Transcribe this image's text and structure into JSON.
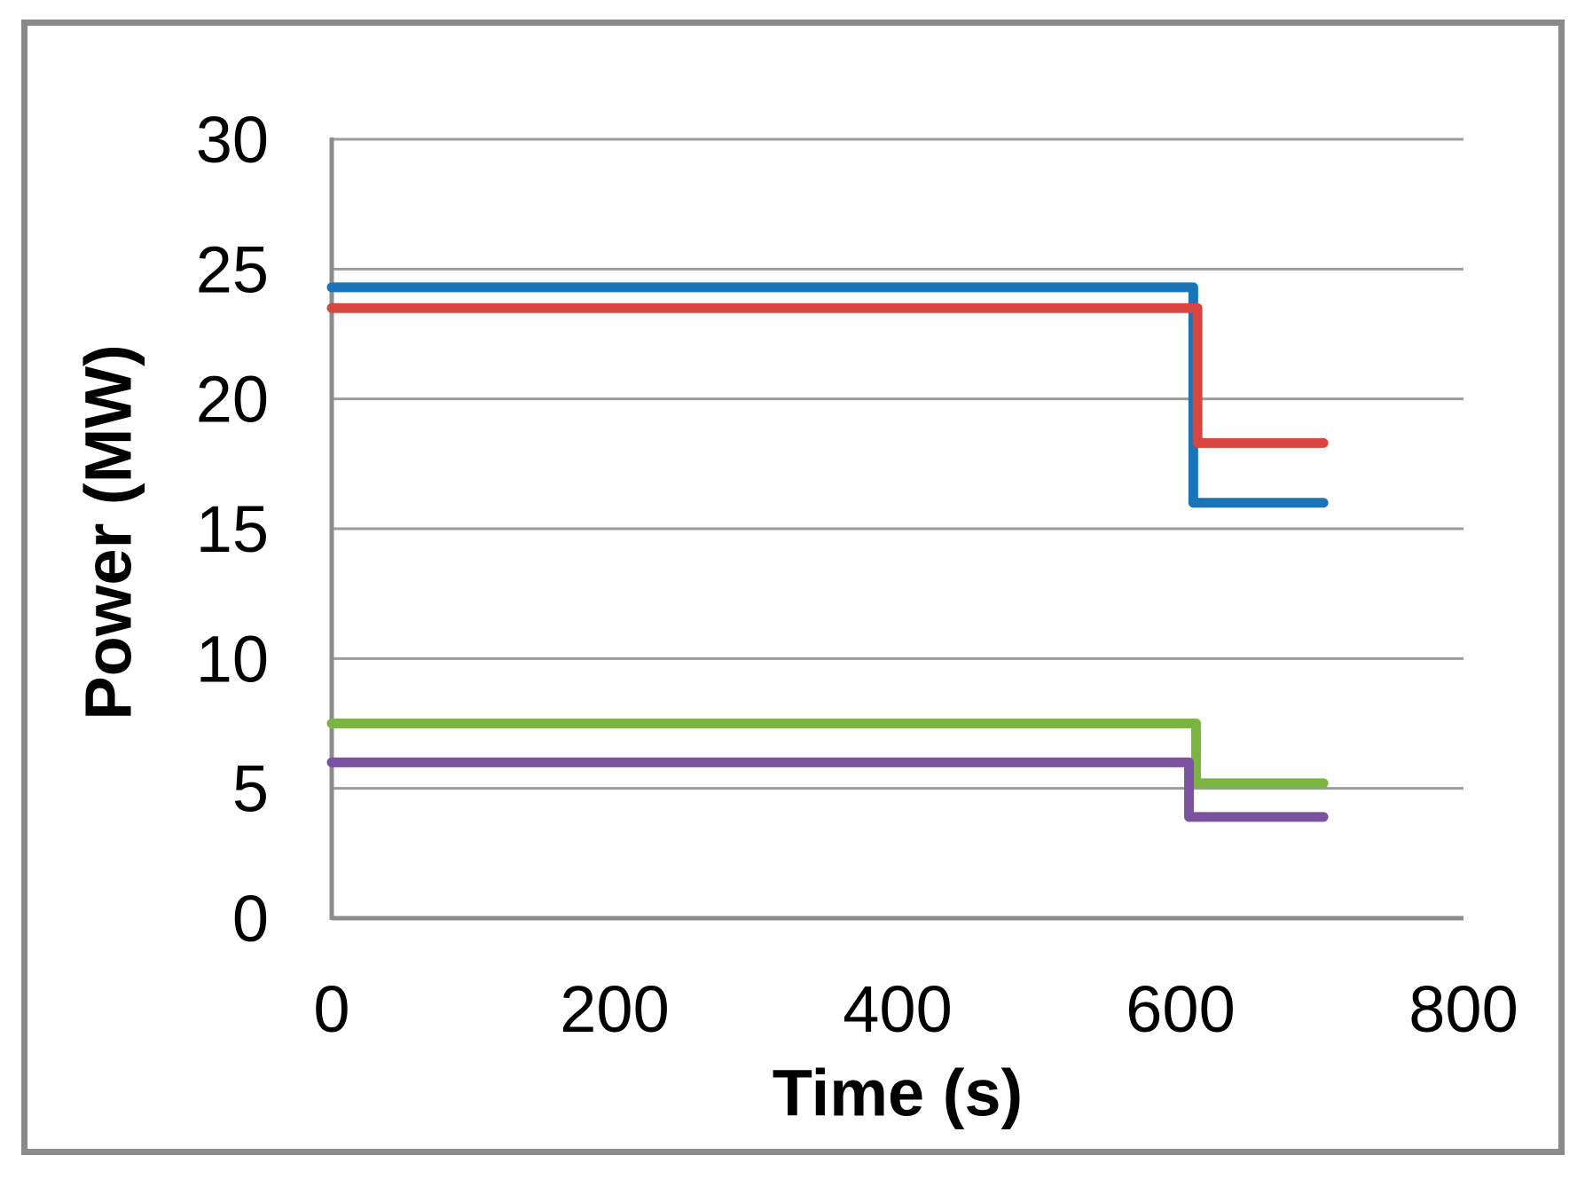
{
  "chart_data": {
    "type": "line",
    "subtype": "step",
    "title": "",
    "xlabel": "Time (s)",
    "ylabel": "Power (MW)",
    "xlim": [
      0,
      800
    ],
    "ylim": [
      0,
      30
    ],
    "xticks": [
      0,
      200,
      400,
      600,
      800
    ],
    "yticks": [
      0,
      5,
      10,
      15,
      20,
      25,
      30
    ],
    "grid": "horizontal-only",
    "legend": "none",
    "gridline_color": "#9c9c9c",
    "axis_line_color": "#8c8c8c",
    "frame_color": "#8a8a8a",
    "series": [
      {
        "name": "blue-series",
        "color": "#1b74b8",
        "points": [
          [
            0,
            24.3
          ],
          [
            609,
            24.3
          ],
          [
            609,
            16.0
          ],
          [
            701,
            16.0
          ]
        ]
      },
      {
        "name": "red-series",
        "color": "#d9453f",
        "points": [
          [
            0,
            23.5
          ],
          [
            612,
            23.5
          ],
          [
            612,
            18.3
          ],
          [
            701,
            18.3
          ]
        ]
      },
      {
        "name": "green-series",
        "color": "#7db342",
        "points": [
          [
            0,
            7.5
          ],
          [
            611,
            7.5
          ],
          [
            611,
            5.2
          ],
          [
            701,
            5.2
          ]
        ]
      },
      {
        "name": "purple-series",
        "color": "#7a52a0",
        "points": [
          [
            0,
            6.0
          ],
          [
            606,
            6.0
          ],
          [
            606,
            3.9
          ],
          [
            701,
            3.9
          ]
        ]
      }
    ]
  }
}
